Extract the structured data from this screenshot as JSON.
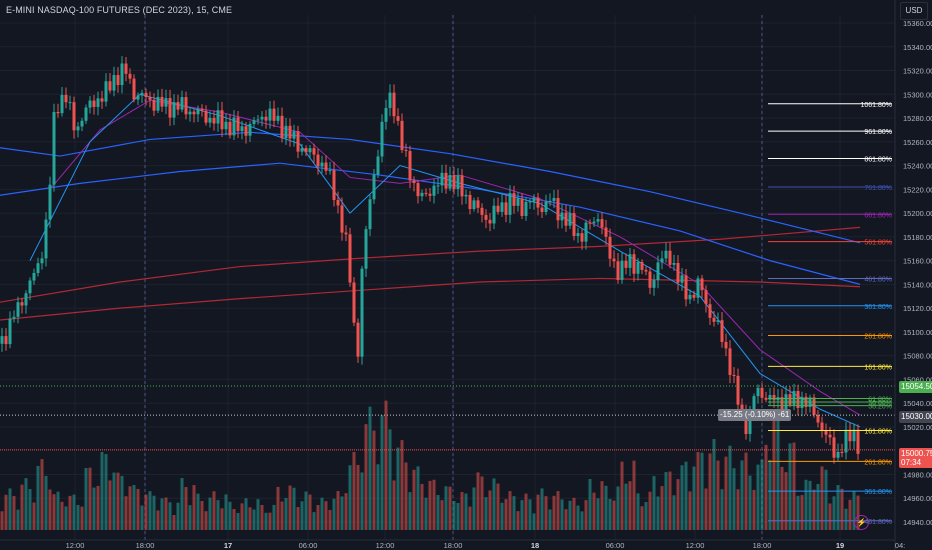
{
  "chart_title": "E-MINI NASDAQ-100 FUTURES (DEC 2023), 15, CME",
  "currency": "USD",
  "price_tags": {
    "green_price": "15054.50",
    "gray_price": "15030.00",
    "last_price": "15000.75",
    "countdown": "07:34",
    "measure_label": "-15.25 (-0.10%) -61"
  },
  "colors": {
    "background": "#131722",
    "up": "#26a69a",
    "down": "#ef5350",
    "ma_blue": "#2962ff",
    "ma_red": "#b22833",
    "ma_purple": "#9c27b0",
    "grid": "#1e222d"
  },
  "chart_data": {
    "type": "candlestick",
    "title": "E-MINI NASDAQ-100 FUTURES (DEC 2023), 15, CME",
    "y_axis": {
      "ticks": [
        15360,
        15340,
        15320,
        15300,
        15280,
        15260,
        15240,
        15220,
        15200,
        15180,
        15160,
        15140,
        15120,
        15100,
        15080,
        15060,
        15040,
        15020,
        14980,
        14960,
        14940
      ],
      "tick_labels": [
        "15360.00",
        "15340.00",
        "15320.00",
        "15300.00",
        "15280.00",
        "15260.00",
        "15240.00",
        "15220.00",
        "15200.00",
        "15180.00",
        "15160.00",
        "15140.00",
        "15120.00",
        "15100.00",
        "15080.00",
        "15060.00",
        "15040.00",
        "15020.00",
        "14980.00",
        "14960.00",
        "14940.00"
      ],
      "range": [
        14935,
        15375
      ]
    },
    "x_axis": {
      "labels": [
        "12:00",
        "18:00",
        "17",
        "06:00",
        "12:00",
        "18:00",
        "18",
        "06:00",
        "12:00",
        "18:00",
        "19",
        "04:"
      ],
      "day_separators": [
        "17",
        "18",
        "19"
      ]
    },
    "price_path": [
      [
        0,
        15090
      ],
      [
        10,
        15105
      ],
      [
        20,
        15125
      ],
      [
        30,
        15140
      ],
      [
        40,
        15160
      ],
      [
        48,
        15200
      ],
      [
        55,
        15290
      ],
      [
        65,
        15300
      ],
      [
        75,
        15270
      ],
      [
        85,
        15285
      ],
      [
        95,
        15295
      ],
      [
        105,
        15300
      ],
      [
        115,
        15315
      ],
      [
        125,
        15320
      ],
      [
        135,
        15300
      ],
      [
        150,
        15295
      ],
      [
        165,
        15290
      ],
      [
        180,
        15290
      ],
      [
        195,
        15285
      ],
      [
        210,
        15280
      ],
      [
        225,
        15275
      ],
      [
        240,
        15270
      ],
      [
        255,
        15275
      ],
      [
        265,
        15285
      ],
      [
        280,
        15275
      ],
      [
        295,
        15260
      ],
      [
        310,
        15250
      ],
      [
        325,
        15240
      ],
      [
        335,
        15215
      ],
      [
        345,
        15180
      ],
      [
        352,
        15130
      ],
      [
        357,
        15070
      ],
      [
        362,
        15150
      ],
      [
        368,
        15200
      ],
      [
        375,
        15240
      ],
      [
        382,
        15270
      ],
      [
        388,
        15300
      ],
      [
        395,
        15290
      ],
      [
        400,
        15260
      ],
      [
        410,
        15235
      ],
      [
        420,
        15210
      ],
      [
        430,
        15220
      ],
      [
        440,
        15225
      ],
      [
        450,
        15230
      ],
      [
        460,
        15220
      ],
      [
        470,
        15210
      ],
      [
        480,
        15200
      ],
      [
        490,
        15195
      ],
      [
        500,
        15205
      ],
      [
        510,
        15210
      ],
      [
        520,
        15205
      ],
      [
        530,
        15210
      ],
      [
        540,
        15205
      ],
      [
        550,
        15210
      ],
      [
        560,
        15200
      ],
      [
        570,
        15190
      ],
      [
        580,
        15180
      ],
      [
        590,
        15190
      ],
      [
        600,
        15200
      ],
      [
        605,
        15175
      ],
      [
        612,
        15160
      ],
      [
        620,
        15150
      ],
      [
        630,
        15160
      ],
      [
        640,
        15155
      ],
      [
        650,
        15140
      ],
      [
        660,
        15160
      ],
      [
        670,
        15165
      ],
      [
        680,
        15140
      ],
      [
        690,
        15130
      ],
      [
        700,
        15140
      ],
      [
        710,
        15115
      ],
      [
        720,
        15100
      ],
      [
        728,
        15080
      ],
      [
        735,
        15050
      ],
      [
        742,
        15030
      ],
      [
        748,
        15020
      ],
      [
        753,
        15045
      ],
      [
        760,
        15050
      ],
      [
        768,
        15045
      ],
      [
        776,
        15040
      ],
      [
        784,
        15045
      ],
      [
        792,
        15040
      ],
      [
        800,
        15045
      ],
      [
        808,
        15040
      ],
      [
        815,
        15030
      ],
      [
        822,
        15020
      ],
      [
        830,
        15005
      ],
      [
        836,
        14995
      ],
      [
        842,
        15005
      ],
      [
        848,
        15010
      ],
      [
        855,
        15015
      ],
      [
        860,
        15000.75
      ]
    ],
    "volume_relative": [
      0.32,
      0.4,
      0.55,
      0.3,
      0.28,
      0.5,
      0.62,
      0.45,
      0.35,
      0.3,
      0.25,
      0.4,
      0.28,
      0.3,
      0.22,
      0.25,
      0.2,
      0.35,
      0.3,
      0.25,
      0.3,
      0.6,
      0.95,
      1.0,
      0.7,
      0.5,
      0.4,
      0.35,
      0.3,
      0.45,
      0.4,
      0.3,
      0.28,
      0.32,
      0.3,
      0.25,
      0.4,
      0.35,
      0.55,
      0.3,
      0.45,
      0.5,
      0.6,
      0.7,
      0.65,
      0.6,
      0.55,
      0.9,
      0.7,
      0.4,
      0.5,
      0.35,
      0.3
    ],
    "fibonacci_levels": [
      {
        "label": "1061.80%",
        "value": 15292,
        "color": "#ffffff"
      },
      {
        "label": "961.80%",
        "value": 15269,
        "color": "#ffffff"
      },
      {
        "label": "861.80%",
        "value": 15246,
        "color": "#ffffff"
      },
      {
        "label": "761.80%",
        "value": 15222,
        "color": "#3f51b5"
      },
      {
        "label": "661.80%",
        "value": 15199,
        "color": "#9c27b0"
      },
      {
        "label": "561.80%",
        "value": 15176,
        "color": "#f44336"
      },
      {
        "label": "461.80%",
        "value": 15145,
        "color": "#5c6bc0"
      },
      {
        "label": "361.80%",
        "value": 15122,
        "color": "#2196f3"
      },
      {
        "label": "261.80%",
        "value": 15097,
        "color": "#ff9800"
      },
      {
        "label": "161.80%",
        "value": 15071,
        "color": "#ffeb3b"
      },
      {
        "label": "61.80%",
        "value": 15044,
        "color": "#4caf50"
      },
      {
        "label": "50.00%",
        "value": 15041,
        "color": "#4caf50"
      },
      {
        "label": "38.20%",
        "value": 15038,
        "color": "#4caf50"
      },
      {
        "label": "161.80%",
        "value": 15017,
        "color": "#ffeb3b"
      },
      {
        "label": "261.80%",
        "value": 14991,
        "color": "#ff9800"
      },
      {
        "label": "361.80%",
        "value": 14966,
        "color": "#2196f3"
      },
      {
        "label": "461.80%",
        "value": 14941,
        "color": "#5c6bc0"
      }
    ],
    "grid": true,
    "legend": "none"
  }
}
